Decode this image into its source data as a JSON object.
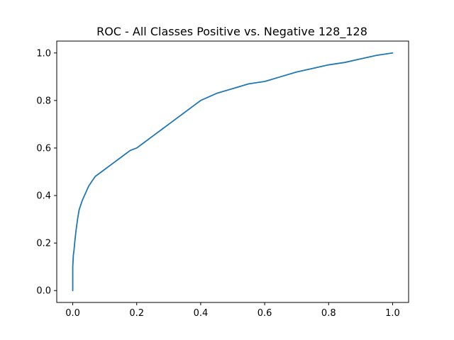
{
  "chart_data": {
    "type": "line",
    "title": "ROC - All Classes Positive vs. Negative 128_128",
    "xlabel": "",
    "ylabel": "",
    "xlim": [
      -0.05,
      1.05
    ],
    "ylim": [
      -0.05,
      1.05
    ],
    "xticks": [
      0.0,
      0.2,
      0.4,
      0.6,
      0.8,
      1.0
    ],
    "yticks": [
      0.0,
      0.2,
      0.4,
      0.6,
      0.8,
      1.0
    ],
    "xtick_labels": [
      "0.0",
      "0.2",
      "0.4",
      "0.6",
      "0.8",
      "1.0"
    ],
    "ytick_labels": [
      "0.0",
      "0.2",
      "0.4",
      "0.6",
      "0.8",
      "1.0"
    ],
    "grid": false,
    "series": [
      {
        "color": "#1f77b4",
        "x": [
          0.0,
          0.0,
          0.002,
          0.004,
          0.006,
          0.01,
          0.015,
          0.02,
          0.025,
          0.03,
          0.04,
          0.05,
          0.06,
          0.07,
          0.08,
          0.1,
          0.12,
          0.14,
          0.16,
          0.18,
          0.2,
          0.22,
          0.25,
          0.28,
          0.3,
          0.32,
          0.35,
          0.38,
          0.4,
          0.45,
          0.5,
          0.55,
          0.6,
          0.65,
          0.7,
          0.75,
          0.8,
          0.85,
          0.9,
          0.95,
          1.0
        ],
        "y": [
          0.0,
          0.1,
          0.15,
          0.17,
          0.2,
          0.25,
          0.3,
          0.34,
          0.36,
          0.38,
          0.41,
          0.44,
          0.46,
          0.48,
          0.49,
          0.51,
          0.53,
          0.55,
          0.57,
          0.59,
          0.6,
          0.62,
          0.65,
          0.68,
          0.7,
          0.72,
          0.75,
          0.78,
          0.8,
          0.83,
          0.85,
          0.87,
          0.88,
          0.9,
          0.92,
          0.935,
          0.95,
          0.96,
          0.975,
          0.99,
          1.0
        ]
      }
    ]
  }
}
